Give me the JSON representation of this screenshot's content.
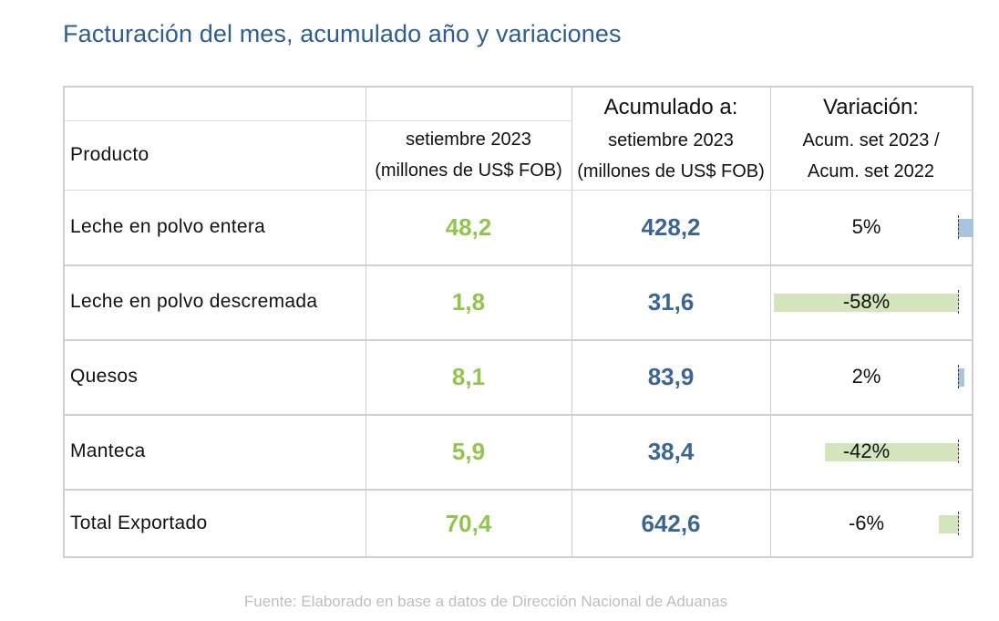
{
  "title": "Facturación del mes, acumulado año y variaciones",
  "source": "Fuente: Elaborado en base a datos de Dirección Nacional de Aduanas",
  "colors": {
    "title": "#2e5d8f",
    "monthly_values": "#92c54e",
    "accumulated_values": "#3b6694",
    "positive_bar": "#a9c4de",
    "negative_bar": "#d4e4bc"
  },
  "headers": {
    "product": "Producto",
    "month_line1": "setiembre 2023",
    "month_line2": "(millones de US$ FOB)",
    "acum_title": "Acumulado a:",
    "acum_line1": "setiembre 2023",
    "acum_line2": "(millones de US$ FOB)",
    "var_title": "Variación:",
    "var_line1": "Acum. set 2023 /",
    "var_line2": "Acum. set 2022"
  },
  "chart_data": {
    "type": "table",
    "columns": [
      "Producto",
      "setiembre 2023 (millones de US$ FOB)",
      "Acumulado a: setiembre 2023 (millones de US$ FOB)",
      "Variación: Acum. set 2023 / Acum. set 2022"
    ],
    "rows": [
      {
        "product": "Leche en polvo entera",
        "month": "48,2",
        "accumulated": "428,2",
        "variation": "5%",
        "variation_value": 5
      },
      {
        "product": "Leche en polvo descremada",
        "month": "1,8",
        "accumulated": "31,6",
        "variation": "-58%",
        "variation_value": -58
      },
      {
        "product": "Quesos",
        "month": "8,1",
        "accumulated": "83,9",
        "variation": "2%",
        "variation_value": 2
      },
      {
        "product": "Manteca",
        "month": "5,9",
        "accumulated": "38,4",
        "variation": "-42%",
        "variation_value": -42
      },
      {
        "product": "Total Exportado",
        "month": "70,4",
        "accumulated": "642,6",
        "variation": "-6%",
        "variation_value": -6
      }
    ]
  }
}
